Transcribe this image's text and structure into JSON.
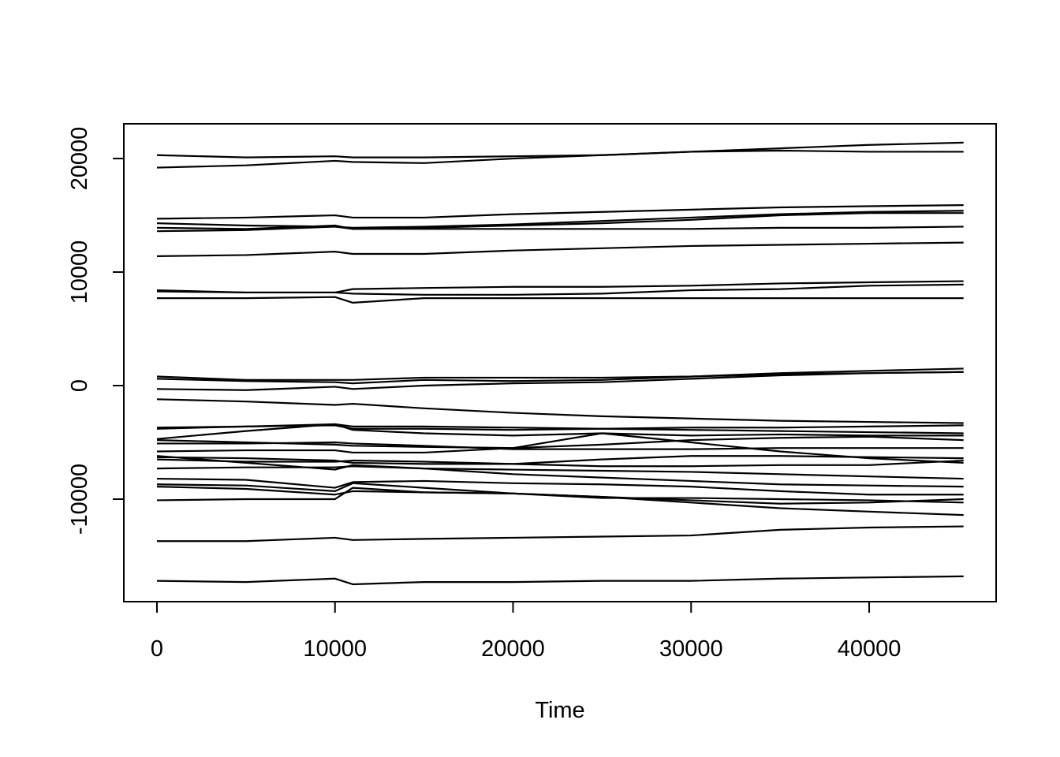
{
  "chart_data": {
    "type": "line",
    "xlabel": "Time",
    "color": "#000000",
    "x": [
      0,
      5000,
      10000,
      11000,
      15000,
      20000,
      25000,
      30000,
      35000,
      40000,
      45300
    ],
    "xlim": [
      -1860,
      47130
    ],
    "xticks": [
      0,
      10000,
      20000,
      30000,
      40000
    ],
    "ylim": [
      -19030,
      23060
    ],
    "yticks": [
      -10000,
      0,
      10000,
      20000
    ],
    "series": [
      {
        "values": [
          20300,
          20100,
          20200,
          20100,
          20100,
          20200,
          20300,
          20600,
          20700,
          20600,
          20600
        ]
      },
      {
        "values": [
          19200,
          19400,
          19800,
          19700,
          19600,
          20000,
          20300,
          20600,
          20900,
          21200,
          21400
        ]
      },
      {
        "values": [
          14700,
          14800,
          15000,
          14800,
          14800,
          15100,
          15300,
          15500,
          15700,
          15800,
          15900
        ]
      },
      {
        "values": [
          14300,
          14100,
          14000,
          13900,
          14000,
          14200,
          14500,
          14800,
          15100,
          15300,
          15400
        ]
      },
      {
        "values": [
          13900,
          13800,
          14100,
          13800,
          13900,
          14100,
          14300,
          14600,
          15000,
          15200,
          15200
        ]
      },
      {
        "values": [
          13600,
          13700,
          14000,
          13800,
          13800,
          13800,
          13800,
          13800,
          13900,
          13900,
          14000
        ]
      },
      {
        "values": [
          11400,
          11500,
          11800,
          11600,
          11600,
          11900,
          12100,
          12300,
          12400,
          12500,
          12600
        ]
      },
      {
        "values": [
          8400,
          8200,
          8200,
          8500,
          8600,
          8700,
          8700,
          8800,
          9000,
          9100,
          9200
        ]
      },
      {
        "values": [
          8300,
          8200,
          8200,
          8100,
          8000,
          8000,
          8100,
          8400,
          8500,
          8800,
          8900
        ]
      },
      {
        "values": [
          7700,
          7700,
          7800,
          7300,
          7700,
          7700,
          7700,
          7700,
          7700,
          7700,
          7700
        ]
      },
      {
        "values": [
          800,
          500,
          500,
          500,
          700,
          700,
          700,
          800,
          1100,
          1300,
          1500
        ]
      },
      {
        "values": [
          600,
          400,
          300,
          200,
          500,
          400,
          500,
          800,
          1000,
          1100,
          1200
        ]
      },
      {
        "values": [
          -300,
          -400,
          -100,
          -300,
          0,
          200,
          300,
          600,
          900,
          1100,
          1200
        ]
      },
      {
        "values": [
          -1200,
          -1400,
          -1700,
          -1600,
          -2000,
          -2400,
          -2700,
          -2900,
          -3100,
          -3200,
          -3300
        ]
      },
      {
        "values": [
          -3800,
          -3600,
          -3500,
          -3800,
          -3800,
          -3900,
          -3800,
          -3700,
          -3700,
          -3600,
          -3500
        ]
      },
      {
        "values": [
          -3700,
          -3600,
          -3400,
          -3600,
          -3600,
          -3700,
          -3800,
          -3900,
          -4000,
          -4100,
          -4200
        ]
      },
      {
        "values": [
          -4700,
          -4000,
          -3400,
          -3900,
          -4200,
          -4400,
          -4200,
          -4400,
          -4300,
          -4400,
          -4400
        ]
      },
      {
        "values": [
          -4800,
          -5000,
          -5200,
          -5300,
          -5400,
          -5500,
          -5200,
          -4800,
          -4600,
          -4500,
          -4800
        ]
      },
      {
        "values": [
          -5100,
          -5100,
          -5000,
          -5100,
          -5300,
          -5600,
          -5600,
          -5600,
          -5500,
          -5500,
          -5500
        ]
      },
      {
        "values": [
          -5800,
          -5700,
          -5700,
          -5900,
          -5900,
          -5500,
          -4200,
          -5000,
          -5800,
          -6400,
          -6800
        ]
      },
      {
        "values": [
          -6300,
          -6400,
          -6600,
          -6800,
          -6900,
          -6900,
          -6500,
          -6200,
          -6200,
          -6300,
          -6400
        ]
      },
      {
        "values": [
          -6500,
          -6700,
          -6700,
          -6600,
          -6700,
          -6900,
          -7100,
          -7100,
          -7000,
          -7000,
          -6600
        ]
      },
      {
        "values": [
          -7300,
          -7200,
          -7200,
          -7100,
          -7300,
          -7400,
          -7500,
          -7600,
          -7800,
          -8000,
          -8200
        ]
      },
      {
        "values": [
          -6200,
          -6800,
          -7400,
          -7000,
          -7300,
          -7800,
          -8100,
          -8400,
          -8700,
          -8800,
          -8900
        ]
      },
      {
        "values": [
          -8200,
          -8300,
          -9000,
          -8500,
          -8400,
          -8600,
          -8700,
          -8900,
          -9300,
          -9600,
          -9600
        ]
      },
      {
        "values": [
          -8700,
          -8800,
          -9300,
          -8600,
          -9000,
          -9500,
          -9900,
          -9900,
          -10000,
          -10100,
          -10300
        ]
      },
      {
        "values": [
          -8900,
          -9100,
          -9600,
          -9300,
          -9400,
          -9500,
          -9800,
          -10300,
          -10800,
          -11100,
          -11400
        ]
      },
      {
        "values": [
          -10100,
          -10000,
          -10000,
          -9000,
          -9400,
          -9500,
          -9800,
          -10100,
          -10400,
          -10300,
          -10000
        ]
      },
      {
        "values": [
          -13700,
          -13700,
          -13400,
          -13600,
          -13500,
          -13400,
          -13300,
          -13200,
          -12700,
          -12500,
          -12400
        ]
      },
      {
        "values": [
          -17200,
          -17300,
          -17000,
          -17500,
          -17300,
          -17300,
          -17200,
          -17200,
          -17000,
          -16900,
          -16800
        ]
      }
    ]
  }
}
